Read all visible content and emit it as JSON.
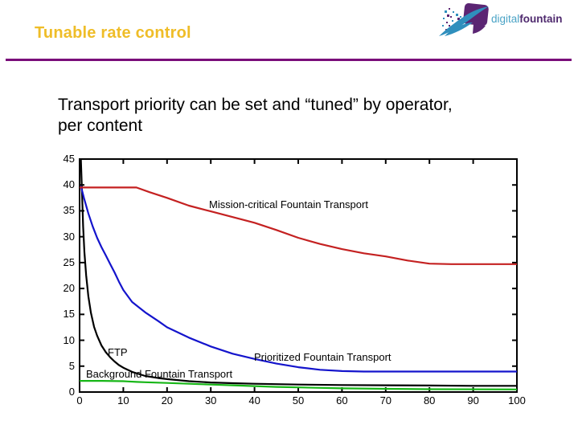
{
  "header": {
    "title": "Tunable rate control",
    "title_color": "#EFBD28",
    "divider_color": "#7A0D7A",
    "logo": {
      "part1": "digital",
      "part2": "fountain",
      "part1_color": "#4AA3C6",
      "part2_color": "#4F2A6E",
      "mark_purple": "#5B2573",
      "mark_blue": "#2F8FBD"
    }
  },
  "body": {
    "text": "Transport priority can be set and “tuned” by operator, per content"
  },
  "chart_data": {
    "type": "line",
    "title": "",
    "xlabel": "",
    "ylabel": "",
    "xlim": [
      0,
      100
    ],
    "ylim": [
      0,
      45
    ],
    "x_ticks": [
      0,
      10,
      20,
      30,
      40,
      50,
      60,
      70,
      80,
      90,
      100
    ],
    "y_ticks": [
      0,
      5,
      10,
      15,
      20,
      25,
      30,
      35,
      40,
      45
    ],
    "grid": false,
    "box": true,
    "legend_position": "in-plot-annotations",
    "series": [
      {
        "name": "FTP",
        "color": "#000000",
        "points": [
          [
            0.3,
            45
          ],
          [
            0.5,
            40
          ],
          [
            0.8,
            32
          ],
          [
            1.1,
            27
          ],
          [
            1.5,
            22.5
          ],
          [
            2,
            18.5
          ],
          [
            2.6,
            15.3
          ],
          [
            3.3,
            12.6
          ],
          [
            4,
            10.9
          ],
          [
            5,
            9
          ],
          [
            6,
            7.7
          ],
          [
            7,
            6.7
          ],
          [
            8,
            5.9
          ],
          [
            9,
            5.2
          ],
          [
            10,
            4.7
          ],
          [
            12,
            3.9
          ],
          [
            15,
            3.1
          ],
          [
            18,
            2.7
          ],
          [
            20,
            2.5
          ],
          [
            25,
            2.1
          ],
          [
            30,
            1.85
          ],
          [
            35,
            1.7
          ],
          [
            40,
            1.6
          ],
          [
            50,
            1.45
          ],
          [
            60,
            1.35
          ],
          [
            70,
            1.3
          ],
          [
            80,
            1.25
          ],
          [
            90,
            1.2
          ],
          [
            100,
            1.2
          ]
        ]
      },
      {
        "name": "Background Fountain Transport",
        "color": "#17B617",
        "points": [
          [
            0,
            2.15
          ],
          [
            5,
            2.15
          ],
          [
            10,
            2.1
          ],
          [
            11,
            2.05
          ],
          [
            13,
            1.95
          ],
          [
            15,
            1.9
          ],
          [
            20,
            1.75
          ],
          [
            25,
            1.6
          ],
          [
            30,
            1.45
          ],
          [
            35,
            1.3
          ],
          [
            40,
            1.15
          ],
          [
            45,
            1.0
          ],
          [
            50,
            0.9
          ],
          [
            55,
            0.8
          ],
          [
            60,
            0.72
          ],
          [
            70,
            0.62
          ],
          [
            80,
            0.55
          ],
          [
            90,
            0.52
          ],
          [
            100,
            0.5
          ]
        ]
      },
      {
        "name": "Prioritized Fountain Transport",
        "color": "#1414CC",
        "points": [
          [
            0.3,
            39.8
          ],
          [
            1,
            37.5
          ],
          [
            2,
            34.5
          ],
          [
            3,
            32
          ],
          [
            4,
            29.8
          ],
          [
            5,
            28
          ],
          [
            6,
            26.4
          ],
          [
            7,
            24.7
          ],
          [
            8,
            23.1
          ],
          [
            9,
            21.3
          ],
          [
            10,
            19.7
          ],
          [
            12,
            17.4
          ],
          [
            15,
            15.4
          ],
          [
            18,
            13.7
          ],
          [
            20,
            12.5
          ],
          [
            25,
            10.5
          ],
          [
            30,
            8.8
          ],
          [
            35,
            7.4
          ],
          [
            40,
            6.4
          ],
          [
            45,
            5.5
          ],
          [
            50,
            4.8
          ],
          [
            55,
            4.3
          ],
          [
            60,
            4.05
          ],
          [
            65,
            3.95
          ],
          [
            70,
            3.95
          ],
          [
            80,
            3.95
          ],
          [
            90,
            3.95
          ],
          [
            100,
            3.95
          ]
        ]
      },
      {
        "name": "Mission-critical Fountain Transport",
        "color": "#C42121",
        "points": [
          [
            0,
            39.5
          ],
          [
            13,
            39.5
          ],
          [
            16,
            38.6
          ],
          [
            20,
            37.5
          ],
          [
            25,
            36
          ],
          [
            30,
            34.9
          ],
          [
            35,
            33.8
          ],
          [
            40,
            32.7
          ],
          [
            45,
            31.3
          ],
          [
            50,
            29.8
          ],
          [
            55,
            28.6
          ],
          [
            60,
            27.6
          ],
          [
            65,
            26.8
          ],
          [
            70,
            26.2
          ],
          [
            75,
            25.4
          ],
          [
            80,
            24.8
          ],
          [
            85,
            24.7
          ],
          [
            90,
            24.7
          ],
          [
            95,
            24.7
          ],
          [
            100,
            24.7
          ]
        ]
      }
    ],
    "annotations": [
      {
        "id": "mission-critical",
        "text": "Mission-critical Fountain Transport",
        "x": 29.6,
        "y": 37.4
      },
      {
        "id": "ftp",
        "text": "FTP",
        "x": 6.4,
        "y": 8.9
      },
      {
        "id": "background",
        "text": "Background Fountain Transport",
        "x": 1.5,
        "y": 4.7
      },
      {
        "id": "prioritized",
        "text": "Prioritized Fountain Transport",
        "x": 39.9,
        "y": 7.95
      }
    ]
  }
}
